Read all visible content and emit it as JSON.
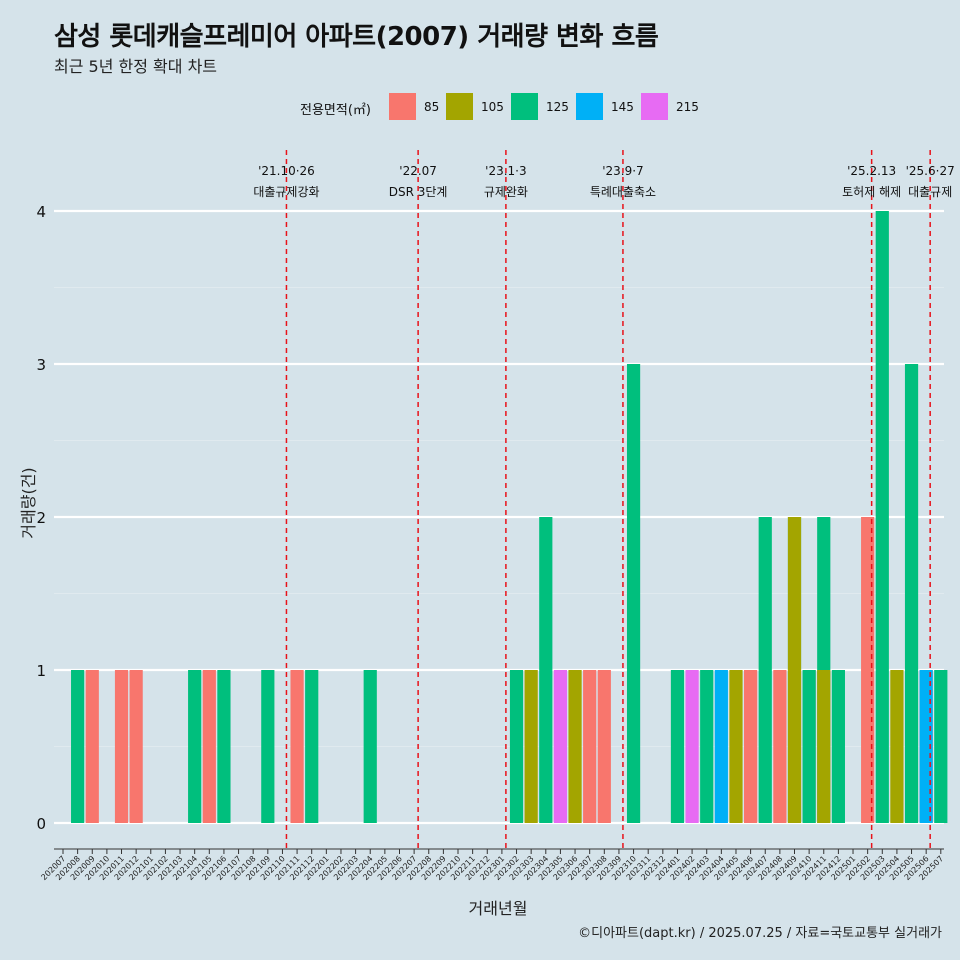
{
  "title": "삼성 롯데캐슬프레미어 아파트(2007) 거래량 변화 흐름",
  "subtitle": "최근 5년 한정 확대 차트",
  "caption": "©디아파트(dapt.kr) / 2025.07.25 / 자료=국토교통부 실거래가",
  "legend": {
    "title": "전용면적(㎡)",
    "items": [
      {
        "label": "85",
        "color": "#f8766d"
      },
      {
        "label": "105",
        "color": "#a3a500"
      },
      {
        "label": "125",
        "color": "#00bf7d"
      },
      {
        "label": "145",
        "color": "#00b0f6"
      },
      {
        "label": "215",
        "color": "#e76bf3"
      }
    ]
  },
  "chart_data": {
    "type": "bar",
    "xlabel": "거래년월",
    "ylabel": "거래량(건)",
    "ylim": [
      0,
      4
    ],
    "yticks": [
      0,
      1,
      2,
      3,
      4
    ],
    "grid": true,
    "legend_position": "top",
    "categories": [
      "202007",
      "202008",
      "202009",
      "202010",
      "202011",
      "202012",
      "202101",
      "202102",
      "202103",
      "202104",
      "202105",
      "202106",
      "202107",
      "202108",
      "202109",
      "202110",
      "202111",
      "202112",
      "202201",
      "202202",
      "202203",
      "202204",
      "202205",
      "202206",
      "202207",
      "202208",
      "202209",
      "202210",
      "202211",
      "202212",
      "202301",
      "202302",
      "202303",
      "202304",
      "202305",
      "202306",
      "202307",
      "202308",
      "202309",
      "202310",
      "202311",
      "202312",
      "202401",
      "202402",
      "202403",
      "202404",
      "202405",
      "202406",
      "202407",
      "202408",
      "202409",
      "202410",
      "202411",
      "202412",
      "202501",
      "202502",
      "202503",
      "202504",
      "202505",
      "202506",
      "202507"
    ],
    "bars": [
      {
        "month": "202008",
        "segments": [
          {
            "area": "125",
            "value": 1
          },
          {
            "area": "85",
            "value": 1
          }
        ]
      },
      {
        "month": "202011",
        "segments": [
          {
            "area": "85",
            "value": 1
          },
          {
            "area": "85",
            "value": 1
          }
        ]
      },
      {
        "month": "202104",
        "segments": [
          {
            "area": "125",
            "value": 1
          },
          {
            "area": "85",
            "value": 1
          },
          {
            "area": "125",
            "value": 1
          }
        ]
      },
      {
        "month": "202109",
        "segments": [
          {
            "area": "125",
            "value": 1
          }
        ]
      },
      {
        "month": "202111",
        "segments": [
          {
            "area": "85",
            "value": 1
          },
          {
            "area": "125",
            "value": 1
          }
        ]
      },
      {
        "month": "202204",
        "segments": [
          {
            "area": "125",
            "value": 1
          }
        ]
      },
      {
        "month": "202302",
        "segments": [
          {
            "area": "125",
            "value": 1
          },
          {
            "area": "105",
            "value": 1
          },
          {
            "area": "125",
            "value": 2
          },
          {
            "area": "215",
            "value": 1
          },
          {
            "area": "105",
            "value": 1
          }
        ]
      },
      {
        "month": "202307",
        "segments": [
          {
            "area": "85",
            "value": 1
          },
          {
            "area": "85",
            "value": 1
          }
        ]
      },
      {
        "month": "202310",
        "segments": [
          {
            "area": "125",
            "value": 3
          }
        ]
      },
      {
        "month": "202401",
        "segments": [
          {
            "area": "125",
            "value": 1
          },
          {
            "area": "215",
            "value": 1
          },
          {
            "area": "125",
            "value": 1
          }
        ]
      },
      {
        "month": "202404",
        "segments": [
          {
            "area": "145",
            "value": 1
          },
          {
            "area": "105",
            "value": 1
          },
          {
            "area": "85",
            "value": 1
          },
          {
            "area": "125",
            "value": 2
          },
          {
            "area": "85",
            "value": 1
          },
          {
            "area": "125",
            "value": 2
          },
          {
            "area": "85",
            "value": 1
          },
          {
            "area": "125",
            "value": 2
          }
        ]
      },
      {
        "month": "202409",
        "segments": [
          {
            "area": "105",
            "value": 2
          },
          {
            "area": "125",
            "value": 1
          },
          {
            "area": "105",
            "value": 1
          },
          {
            "area": "125",
            "value": 1
          }
        ]
      },
      {
        "month": "202502",
        "segments": [
          {
            "area": "85",
            "value": 2
          },
          {
            "area": "125",
            "value": 4
          },
          {
            "area": "105",
            "value": 1
          },
          {
            "area": "125",
            "value": 3
          },
          {
            "area": "85",
            "value": 1
          }
        ]
      },
      {
        "month": "202506",
        "segments": [
          {
            "area": "145",
            "value": 1
          },
          {
            "area": "125",
            "value": 1
          }
        ]
      }
    ],
    "annotations": [
      {
        "month": "202110",
        "date": "'21.10·26",
        "label": "대출규제강화"
      },
      {
        "month": "202207",
        "date": "'22.07",
        "label": "DSR 3단계"
      },
      {
        "month": "202301",
        "date": "'23.1·3",
        "label": "규제완화"
      },
      {
        "month": "202309",
        "date": "'23.9·7",
        "label": "특례대출축소"
      },
      {
        "month": "202502",
        "date": "'25.2.13",
        "label": "토허제 해제"
      },
      {
        "month": "202506",
        "date": "'25.6·27",
        "label": "대출규제"
      }
    ]
  }
}
